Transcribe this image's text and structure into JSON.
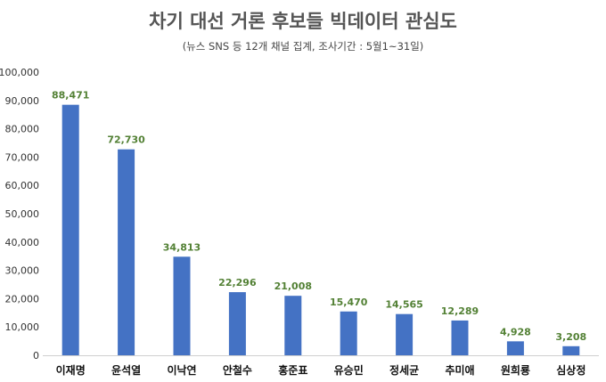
{
  "chart_data": {
    "type": "bar",
    "title": "차기 대선 거론 후보들 빅데이터 관심도",
    "subtitle": "(뉴스 SNS 등 12개 채널 집계, 조사기간 : 5월1~31일)",
    "categories": [
      "이재명",
      "윤석열",
      "이낙연",
      "안철수",
      "홍준표",
      "유승민",
      "정세균",
      "추미애",
      "원희룡",
      "심상정"
    ],
    "values": [
      88471,
      72730,
      34813,
      22296,
      21008,
      15470,
      14565,
      12289,
      4928,
      3208
    ],
    "value_labels": [
      "88,471",
      "72,730",
      "34,813",
      "22,296",
      "21,008",
      "15,470",
      "14,565",
      "12,289",
      "4,928",
      "3,208"
    ],
    "yticks": [
      "0",
      "10,000",
      "20,000",
      "30,000",
      "40,000",
      "50,000",
      "60,000",
      "70,000",
      "80,000",
      "90,000",
      "100,000"
    ],
    "ylim": [
      0,
      100000
    ],
    "xlabel": "",
    "ylabel": "",
    "grid": false,
    "legend": "none",
    "bar_color": "#4472C4",
    "label_color": "#538135"
  }
}
